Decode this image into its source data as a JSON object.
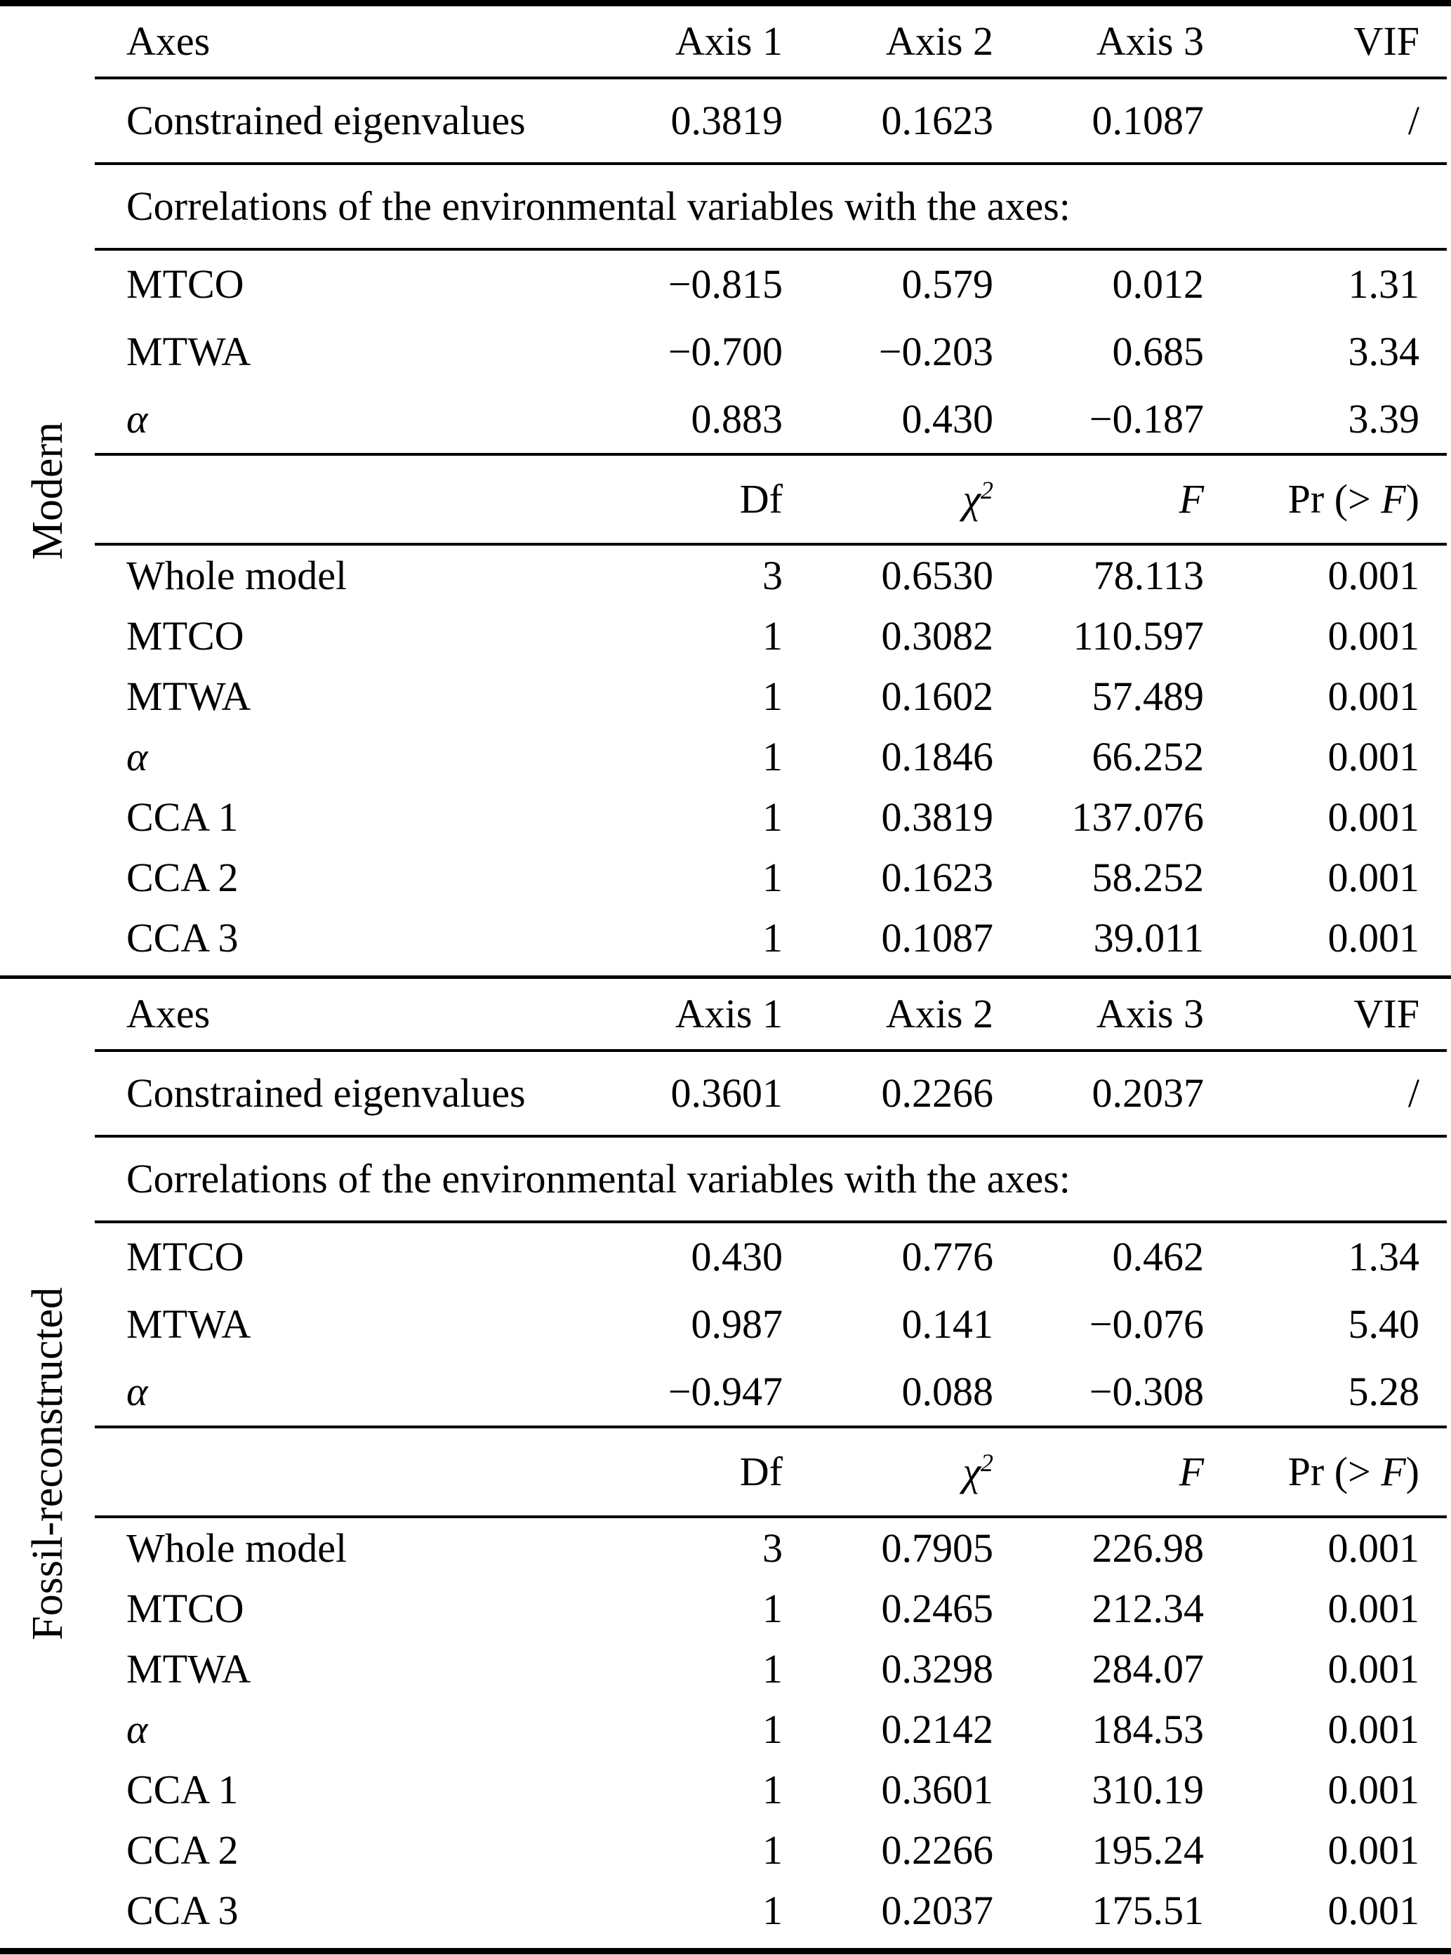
{
  "sections": [
    {
      "label": "Modern",
      "header": {
        "axes": "Axes",
        "axis1": "Axis 1",
        "axis2": "Axis 2",
        "axis3": "Axis 3",
        "vif": "VIF"
      },
      "eigen": {
        "label": "Constrained eigenvalues",
        "axis1": "0.3819",
        "axis2": "0.1623",
        "axis3": "0.1087",
        "vif": "/"
      },
      "corr_title": "Correlations of the environmental variables with the axes:",
      "corr_rows": [
        {
          "label": "MTCO",
          "axis1": "−0.815",
          "axis2": "0.579",
          "axis3": "0.012",
          "vif": "1.31"
        },
        {
          "label": "MTWA",
          "axis1": "−0.700",
          "axis2": "−0.203",
          "axis3": "0.685",
          "vif": "3.34"
        },
        {
          "label": "α",
          "label_italic": true,
          "axis1": "0.883",
          "axis2": "0.430",
          "axis3": "−0.187",
          "vif": "3.39"
        }
      ],
      "test_header": {
        "df": "Df",
        "chi": "χ",
        "chi_sup": "2",
        "f": "F",
        "pr_pre": "Pr (> ",
        "pr_f": "F",
        "pr_post": ")"
      },
      "test_rows": [
        {
          "label": "Whole model",
          "df": "3",
          "chi2": "0.6530",
          "f": "78.113",
          "pr": "0.001"
        },
        {
          "label": "MTCO",
          "df": "1",
          "chi2": "0.3082",
          "f": "110.597",
          "pr": "0.001"
        },
        {
          "label": "MTWA",
          "df": "1",
          "chi2": "0.1602",
          "f": "57.489",
          "pr": "0.001"
        },
        {
          "label": "α",
          "label_italic": true,
          "df": "1",
          "chi2": "0.1846",
          "f": "66.252",
          "pr": "0.001"
        },
        {
          "label": "CCA 1",
          "df": "1",
          "chi2": "0.3819",
          "f": "137.076",
          "pr": "0.001"
        },
        {
          "label": "CCA 2",
          "df": "1",
          "chi2": "0.1623",
          "f": "58.252",
          "pr": "0.001"
        },
        {
          "label": "CCA 3",
          "df": "1",
          "chi2": "0.1087",
          "f": "39.011",
          "pr": "0.001"
        }
      ]
    },
    {
      "label": "Fossil-reconstructed",
      "header": {
        "axes": "Axes",
        "axis1": "Axis 1",
        "axis2": "Axis 2",
        "axis3": "Axis 3",
        "vif": "VIF"
      },
      "eigen": {
        "label": "Constrained eigenvalues",
        "axis1": "0.3601",
        "axis2": "0.2266",
        "axis3": "0.2037",
        "vif": "/"
      },
      "corr_title": "Correlations of the environmental variables with the axes:",
      "corr_rows": [
        {
          "label": "MTCO",
          "axis1": "0.430",
          "axis2": "0.776",
          "axis3": "0.462",
          "vif": "1.34"
        },
        {
          "label": "MTWA",
          "axis1": "0.987",
          "axis2": "0.141",
          "axis3": "−0.076",
          "vif": "5.40"
        },
        {
          "label": "α",
          "label_italic": true,
          "axis1": "−0.947",
          "axis2": "0.088",
          "axis3": "−0.308",
          "vif": "5.28"
        }
      ],
      "test_header": {
        "df": "Df",
        "chi": "χ",
        "chi_sup": "2",
        "f": "F",
        "pr_pre": "Pr (> ",
        "pr_f": "F",
        "pr_post": ")"
      },
      "test_rows": [
        {
          "label": "Whole model",
          "df": "3",
          "chi2": "0.7905",
          "f": "226.98",
          "pr": "0.001"
        },
        {
          "label": "MTCO",
          "df": "1",
          "chi2": "0.2465",
          "f": "212.34",
          "pr": "0.001"
        },
        {
          "label": "MTWA",
          "df": "1",
          "chi2": "0.3298",
          "f": "284.07",
          "pr": "0.001"
        },
        {
          "label": "α",
          "label_italic": true,
          "df": "1",
          "chi2": "0.2142",
          "f": "184.53",
          "pr": "0.001"
        },
        {
          "label": "CCA 1",
          "df": "1",
          "chi2": "0.3601",
          "f": "310.19",
          "pr": "0.001"
        },
        {
          "label": "CCA 2",
          "df": "1",
          "chi2": "0.2266",
          "f": "195.24",
          "pr": "0.001"
        },
        {
          "label": "CCA 3",
          "df": "1",
          "chi2": "0.2037",
          "f": "175.51",
          "pr": "0.001"
        }
      ]
    }
  ]
}
